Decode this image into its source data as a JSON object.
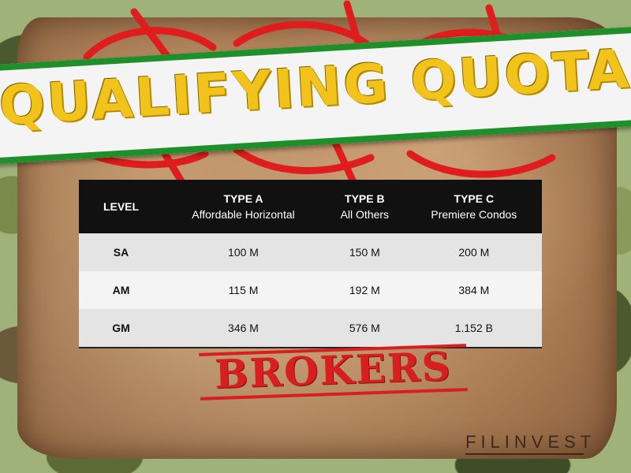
{
  "banner": {
    "title": "QUALIFYING QUOTA"
  },
  "table": {
    "headers": [
      {
        "title": "LEVEL",
        "subtitle": ""
      },
      {
        "title": "TYPE A",
        "subtitle": "Affordable Horizontal"
      },
      {
        "title": "TYPE B",
        "subtitle": "All Others"
      },
      {
        "title": "TYPE C",
        "subtitle": "Premiere Condos"
      }
    ],
    "rows": [
      {
        "level": "SA",
        "type_a": "100 M",
        "type_b": "150 M",
        "type_c": "200 M"
      },
      {
        "level": "AM",
        "type_a": "115 M",
        "type_b": "192 M",
        "type_c": "384 M"
      },
      {
        "level": "GM",
        "type_a": "346 M",
        "type_b": "576 M",
        "type_c": "1.152 B"
      }
    ]
  },
  "stamp": {
    "text": "BROKERS",
    "color": "#d81e1e"
  },
  "logo": {
    "text": "FILINVEST"
  },
  "colors": {
    "banner_border": "#1f8f2a",
    "banner_text": "#f2c31a",
    "table_header_bg": "#111111"
  }
}
